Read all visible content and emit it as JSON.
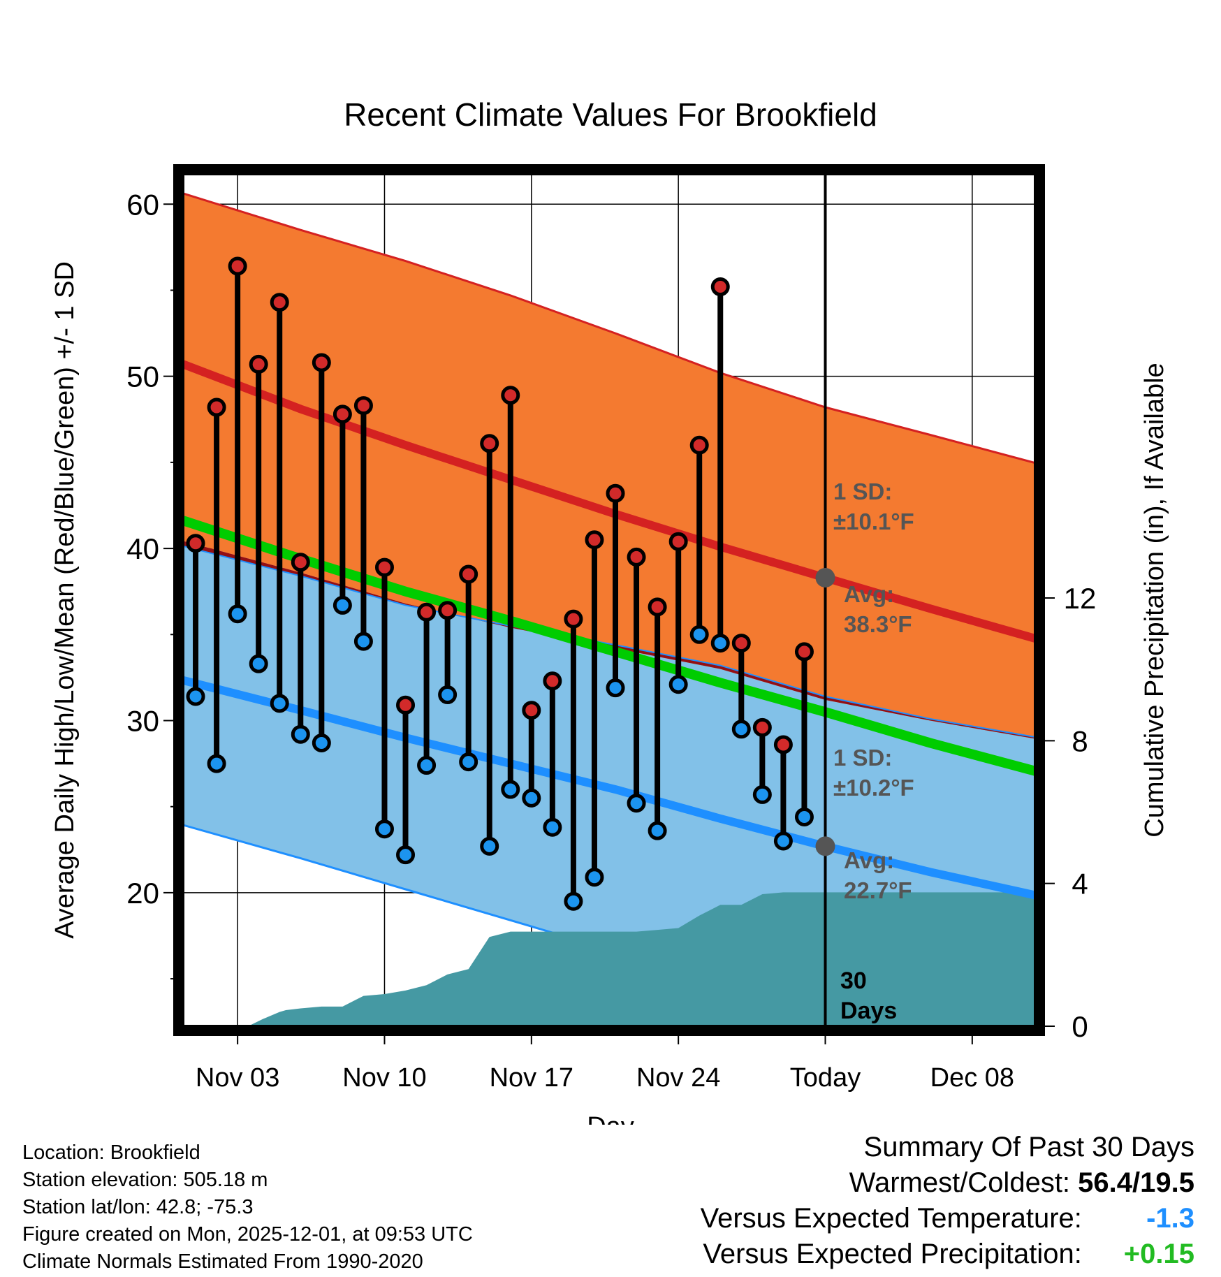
{
  "chart_data": {
    "type": "line",
    "title": "Recent Climate Values For Brookfield",
    "xlabel": "Day",
    "ylabel": "Average Daily High/Low/Mean (Red/Blue/Green) +/- 1 SD",
    "ylabel_right": "Cumulative Precipitation (in), If Available",
    "ylim": [
      12,
      62
    ],
    "ylim_right": [
      0,
      24
    ],
    "xlim_days": [
      -0.8,
      40.2
    ],
    "x_ticks": [
      {
        "day": 2,
        "label": "Nov 03"
      },
      {
        "day": 9,
        "label": "Nov 10"
      },
      {
        "day": 16,
        "label": "Nov 17"
      },
      {
        "day": 23,
        "label": "Nov 24"
      },
      {
        "day": 30,
        "label": "Today"
      },
      {
        "day": 37,
        "label": "Dec 08"
      }
    ],
    "y_ticks": [
      20,
      30,
      40,
      50,
      60
    ],
    "y_ticks_right": [
      0,
      4,
      8,
      12
    ],
    "today_day": 30,
    "days_label_number": "30",
    "days_label_word": "Days",
    "normals": {
      "x": [
        -0.8,
        5,
        10,
        15,
        20,
        25,
        30,
        35,
        40.2
      ],
      "high_mean": [
        50.8,
        48.1,
        46.0,
        44.0,
        42.0,
        40.1,
        38.3,
        36.5,
        34.7
      ],
      "high_upper": [
        60.7,
        58.5,
        56.7,
        54.7,
        52.5,
        50.2,
        48.2,
        46.6,
        44.9
      ],
      "high_lower": [
        40.5,
        38.6,
        36.8,
        35.4,
        34.2,
        33.0,
        31.2,
        30.0,
        28.9
      ],
      "low_mean": [
        32.4,
        30.6,
        29.0,
        27.5,
        26.0,
        24.3,
        22.7,
        21.2,
        19.8
      ],
      "low_upper": [
        40.2,
        38.4,
        36.7,
        35.5,
        34.4,
        33.2,
        31.4,
        30.1,
        29.0
      ],
      "low_lower": [
        24.0,
        22.0,
        20.2,
        18.4,
        16.6,
        14.8,
        13.0,
        11.3,
        9.6
      ],
      "mean": [
        41.7,
        39.4,
        37.5,
        35.8,
        34.0,
        32.2,
        30.5,
        28.7,
        27.0
      ]
    },
    "daily": {
      "day": [
        0,
        1,
        2,
        3,
        4,
        5,
        6,
        7,
        8,
        9,
        10,
        11,
        12,
        13,
        14,
        15,
        16,
        17,
        18,
        19,
        20,
        21,
        22,
        23,
        24,
        25,
        26,
        27,
        28,
        29
      ],
      "high": [
        40.3,
        48.2,
        56.4,
        50.7,
        54.3,
        39.2,
        50.8,
        47.8,
        48.3,
        38.9,
        30.9,
        36.3,
        36.4,
        38.5,
        46.1,
        48.9,
        30.6,
        32.3,
        35.9,
        40.5,
        43.2,
        39.5,
        36.6,
        40.4,
        46.0,
        55.2,
        34.5,
        29.6,
        28.6,
        34.0
      ],
      "low": [
        31.4,
        27.5,
        36.2,
        33.3,
        31.0,
        29.2,
        28.7,
        36.7,
        34.6,
        23.7,
        22.2,
        27.4,
        31.5,
        27.6,
        22.7,
        26.0,
        25.5,
        23.8,
        19.5,
        20.9,
        31.9,
        25.2,
        23.6,
        32.1,
        35.0,
        34.5,
        29.5,
        25.7,
        23.0,
        24.4
      ]
    },
    "precip": {
      "day": [
        -0.8,
        2.5,
        3.2,
        4.0,
        4.3,
        5.0,
        6.0,
        7.0,
        8.0,
        9.0,
        10.0,
        11.0,
        12.0,
        13.0,
        14.0,
        15.0,
        16.0,
        17.0,
        18.0,
        19.0,
        20.0,
        21.0,
        22.0,
        23.0,
        24.0,
        25.0,
        26.0,
        27.0,
        28.0,
        29.0,
        30.0,
        40.2
      ],
      "cum": [
        0,
        0,
        0.2,
        0.4,
        0.45,
        0.5,
        0.55,
        0.55,
        0.85,
        0.9,
        1.0,
        1.15,
        1.45,
        1.6,
        2.5,
        2.65,
        2.65,
        2.65,
        2.65,
        2.65,
        2.65,
        2.65,
        2.7,
        2.75,
        3.1,
        3.4,
        3.4,
        3.7,
        3.75,
        3.75,
        3.75,
        3.75
      ]
    },
    "annotations": [
      {
        "line1": "1 SD:",
        "line2": "±10.1°F"
      },
      {
        "line1": "Avg:",
        "line2": "38.3°F"
      },
      {
        "line1": "1 SD:",
        "line2": "±10.2°F"
      },
      {
        "line1": "Avg:",
        "line2": "22.7°F"
      }
    ],
    "colors": {
      "high_band": "#f47a30",
      "high_line": "#d42121",
      "low_band": "#82c1e8",
      "low_line": "#1e8fff",
      "overlap": "#930f14",
      "mean_line": "#00cc00",
      "precip": "#4599a3",
      "high_dot": "#d22a2a",
      "low_dot": "#1c94ef",
      "avg_marker": "#555555",
      "annotation_text": "#555555"
    }
  },
  "footer": {
    "location": "Location: Brookfield",
    "elevation": "Station elevation: 505.18 m",
    "latlon": "Station lat/lon: 42.8; -75.3",
    "created": "Figure created on Mon, 2025-12-01, at 09:53 UTC",
    "normals": "Climate Normals Estimated From 1990-2020"
  },
  "summary": {
    "title": "Summary Of Past 30 Days",
    "warmest_label": "Warmest/Coldest:",
    "warmest_value": "56.4/19.5",
    "temp_label": "Versus Expected Temperature:",
    "temp_value": "-1.3",
    "temp_color": "#1e8fff",
    "precip_label": "Versus Expected Precipitation:",
    "precip_value": "+0.15",
    "precip_color": "#22bb22"
  }
}
